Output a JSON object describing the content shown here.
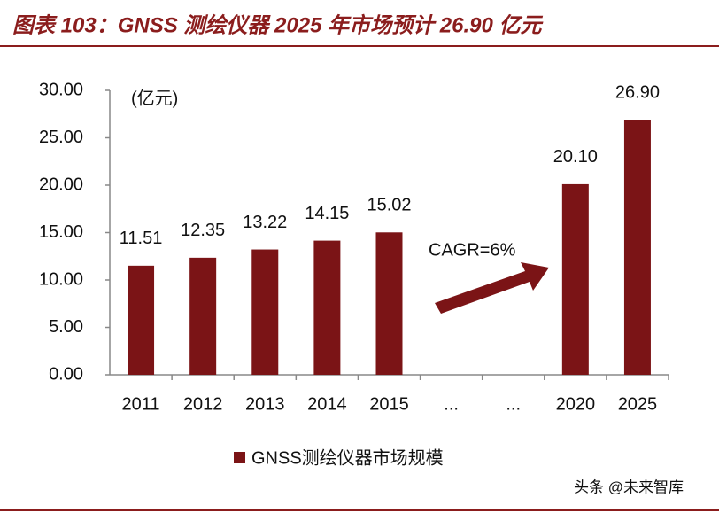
{
  "chart_data": {
    "type": "bar",
    "title": "图表 103：GNSS 测绘仪器 2025 年市场预计 26.90 亿元",
    "unit_label": "(亿元)",
    "annotation": "CAGR=6%",
    "watermark": "头条 @未来智库",
    "categories": [
      "2011",
      "2012",
      "2013",
      "2014",
      "2015",
      "...",
      "...",
      "2020",
      "2025"
    ],
    "series": [
      {
        "name": "GNSS测绘仪器市场规模",
        "color": "#7b1416",
        "values": [
          11.51,
          12.35,
          13.22,
          14.15,
          15.02,
          null,
          null,
          20.1,
          26.9
        ],
        "value_labels": [
          "11.51",
          "12.35",
          "13.22",
          "14.15",
          "15.02",
          null,
          null,
          "20.10",
          "26.90"
        ]
      }
    ],
    "ylim": [
      0,
      30
    ],
    "yticks": [
      {
        "value": 0,
        "label": "0.00"
      },
      {
        "value": 5,
        "label": "5.00"
      },
      {
        "value": 10,
        "label": "10.00"
      },
      {
        "value": 15,
        "label": "15.00"
      },
      {
        "value": 20,
        "label": "20.00"
      },
      {
        "value": 25,
        "label": "25.00"
      },
      {
        "value": 30,
        "label": "30.00"
      }
    ],
    "grid": false,
    "legend": "bottom"
  }
}
